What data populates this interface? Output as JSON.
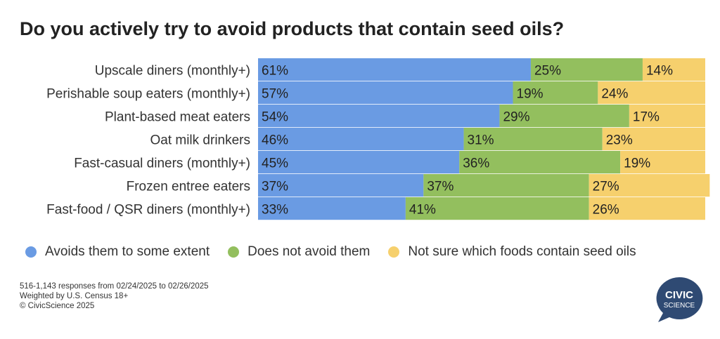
{
  "chart_data": {
    "type": "bar",
    "orientation": "horizontal",
    "stacked": true,
    "percent_stacked": true,
    "title": "Do you actively try to avoid products that contain seed oils?",
    "categories": [
      "Upscale diners (monthly+)",
      "Perishable soup eaters (monthly+)",
      "Plant-based meat eaters",
      "Oat milk drinkers",
      "Fast-casual diners (monthly+)",
      "Frozen entree eaters",
      "Fast-food / QSR diners (monthly+)"
    ],
    "series": [
      {
        "name": "Avoids them to some extent",
        "color": "#6a9be3",
        "values": [
          61,
          57,
          54,
          46,
          45,
          37,
          33
        ]
      },
      {
        "name": "Does not avoid them",
        "color": "#93bf5e",
        "values": [
          25,
          19,
          29,
          31,
          36,
          37,
          41
        ]
      },
      {
        "name": "Not sure which foods contain seed oils",
        "color": "#f6d06d",
        "values": [
          14,
          24,
          17,
          23,
          19,
          27,
          26
        ]
      }
    ],
    "xlim": [
      0,
      100
    ],
    "value_suffix": "%",
    "legend": "bottom",
    "grid": false
  },
  "footnotes": [
    "516-1,143 responses from 02/24/2025 to 02/26/2025",
    "Weighted by U.S. Census 18+",
    "© CivicScience 2025"
  ],
  "logo": {
    "line1": "CIVIC",
    "line2": "SCIENCE",
    "color": "#2f4a73",
    "icon": "speech-bubble-logo"
  }
}
